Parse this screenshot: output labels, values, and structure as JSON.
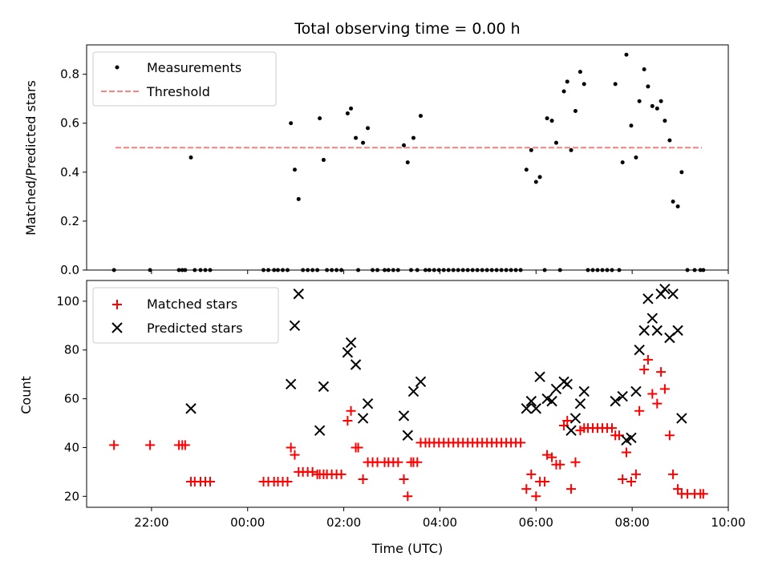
{
  "chart_data": [
    {
      "type": "scatter",
      "title": "Total observing time = 0.00 h",
      "xlabel": "",
      "ylabel": "Matched/Predicted stars",
      "xlim_hours": [
        -3.35,
        10.0
      ],
      "ylim": [
        0,
        0.92
      ],
      "yticks": [
        0.0,
        0.2,
        0.4,
        0.6,
        0.8
      ],
      "ytick_labels": [
        "0.0",
        "0.2",
        "0.4",
        "0.6",
        "0.8"
      ],
      "legend": {
        "placement": "top-left",
        "entries": [
          "Measurements",
          "Threshold"
        ]
      },
      "threshold": {
        "name": "Threshold",
        "value": 0.5,
        "x_range_hours": [
          -2.75,
          9.45
        ],
        "color": "#ff7f7f",
        "style": "dashed"
      },
      "series": [
        {
          "name": "Measurements",
          "color": "#000000",
          "marker": "dot",
          "points": [
            [
              -2.78,
              0.0
            ],
            [
              -2.03,
              0.0
            ],
            [
              -1.43,
              0.0
            ],
            [
              -1.36,
              0.0
            ],
            [
              -1.3,
              0.0
            ],
            [
              -1.18,
              0.46
            ],
            [
              -1.1,
              0.0
            ],
            [
              -0.98,
              0.0
            ],
            [
              -0.88,
              0.0
            ],
            [
              -0.78,
              0.0
            ],
            [
              0.33,
              0.0
            ],
            [
              0.43,
              0.0
            ],
            [
              0.55,
              0.0
            ],
            [
              0.63,
              0.0
            ],
            [
              0.73,
              0.0
            ],
            [
              0.83,
              0.0
            ],
            [
              0.9,
              0.6
            ],
            [
              0.98,
              0.41
            ],
            [
              1.06,
              0.29
            ],
            [
              1.15,
              0.0
            ],
            [
              1.25,
              0.0
            ],
            [
              1.35,
              0.0
            ],
            [
              1.45,
              0.0
            ],
            [
              1.5,
              0.62
            ],
            [
              1.58,
              0.45
            ],
            [
              1.65,
              0.0
            ],
            [
              1.75,
              0.0
            ],
            [
              1.85,
              0.0
            ],
            [
              1.95,
              0.0
            ],
            [
              2.08,
              0.64
            ],
            [
              2.15,
              0.66
            ],
            [
              2.25,
              0.54
            ],
            [
              2.3,
              0.0
            ],
            [
              2.4,
              0.52
            ],
            [
              2.5,
              0.58
            ],
            [
              2.6,
              0.0
            ],
            [
              2.7,
              0.0
            ],
            [
              2.85,
              0.0
            ],
            [
              2.93,
              0.0
            ],
            [
              3.03,
              0.0
            ],
            [
              3.13,
              0.0
            ],
            [
              3.25,
              0.51
            ],
            [
              3.33,
              0.44
            ],
            [
              3.4,
              0.0
            ],
            [
              3.45,
              0.54
            ],
            [
              3.53,
              0.0
            ],
            [
              3.6,
              0.63
            ],
            [
              3.7,
              0.0
            ],
            [
              3.78,
              0.0
            ],
            [
              3.88,
              0.0
            ],
            [
              3.98,
              0.0
            ],
            [
              4.08,
              0.0
            ],
            [
              4.18,
              0.0
            ],
            [
              4.28,
              0.0
            ],
            [
              4.38,
              0.0
            ],
            [
              4.48,
              0.0
            ],
            [
              4.58,
              0.0
            ],
            [
              4.68,
              0.0
            ],
            [
              4.78,
              0.0
            ],
            [
              4.88,
              0.0
            ],
            [
              4.98,
              0.0
            ],
            [
              5.08,
              0.0
            ],
            [
              5.18,
              0.0
            ],
            [
              5.28,
              0.0
            ],
            [
              5.38,
              0.0
            ],
            [
              5.48,
              0.0
            ],
            [
              5.58,
              0.0
            ],
            [
              5.68,
              0.0
            ],
            [
              5.8,
              0.41
            ],
            [
              5.9,
              0.49
            ],
            [
              6.0,
              0.36
            ],
            [
              6.08,
              0.38
            ],
            [
              6.18,
              0.0
            ],
            [
              6.23,
              0.62
            ],
            [
              6.33,
              0.61
            ],
            [
              6.42,
              0.52
            ],
            [
              6.5,
              0.0
            ],
            [
              6.58,
              0.73
            ],
            [
              6.65,
              0.77
            ],
            [
              6.73,
              0.49
            ],
            [
              6.82,
              0.65
            ],
            [
              6.92,
              0.81
            ],
            [
              7.0,
              0.76
            ],
            [
              7.08,
              0.0
            ],
            [
              7.18,
              0.0
            ],
            [
              7.28,
              0.0
            ],
            [
              7.38,
              0.0
            ],
            [
              7.48,
              0.0
            ],
            [
              7.58,
              0.0
            ],
            [
              7.65,
              0.76
            ],
            [
              7.73,
              0.0
            ],
            [
              7.8,
              0.44
            ],
            [
              7.88,
              0.88
            ],
            [
              7.98,
              0.59
            ],
            [
              8.08,
              0.46
            ],
            [
              8.15,
              0.69
            ],
            [
              8.25,
              0.82
            ],
            [
              8.33,
              0.75
            ],
            [
              8.42,
              0.67
            ],
            [
              8.52,
              0.66
            ],
            [
              8.6,
              0.69
            ],
            [
              8.68,
              0.61
            ],
            [
              8.78,
              0.53
            ],
            [
              8.85,
              0.28
            ],
            [
              8.95,
              0.26
            ],
            [
              9.03,
              0.4
            ],
            [
              9.15,
              0.0
            ],
            [
              9.3,
              0.0
            ],
            [
              9.42,
              0.0
            ],
            [
              9.48,
              0.0
            ]
          ]
        }
      ]
    },
    {
      "type": "scatter",
      "title": "",
      "xlabel": "Time (UTC)",
      "ylabel": "Count",
      "xlim_hours": [
        -3.35,
        10.0
      ],
      "ylim": [
        15.5,
        108.5
      ],
      "yticks": [
        20,
        40,
        60,
        80,
        100
      ],
      "ytick_labels": [
        "20",
        "40",
        "60",
        "80",
        "100"
      ],
      "xticks_hours": [
        -2,
        0,
        2,
        4,
        6,
        8,
        10
      ],
      "xtick_labels": [
        "22:00",
        "00:00",
        "02:00",
        "04:00",
        "06:00",
        "08:00",
        "10:00"
      ],
      "legend": {
        "placement": "top-left",
        "entries": [
          "Matched stars",
          "Predicted stars"
        ]
      },
      "series": [
        {
          "name": "Matched stars",
          "color": "#ff0000",
          "marker": "plus",
          "points": [
            [
              -2.78,
              41
            ],
            [
              -2.03,
              41
            ],
            [
              -1.43,
              41
            ],
            [
              -1.36,
              41
            ],
            [
              -1.3,
              41
            ],
            [
              -1.18,
              26
            ],
            [
              -1.1,
              26
            ],
            [
              -0.98,
              26
            ],
            [
              -0.88,
              26
            ],
            [
              -0.78,
              26
            ],
            [
              0.33,
              26
            ],
            [
              0.43,
              26
            ],
            [
              0.55,
              26
            ],
            [
              0.63,
              26
            ],
            [
              0.73,
              26
            ],
            [
              0.83,
              26
            ],
            [
              0.9,
              40
            ],
            [
              0.98,
              37
            ],
            [
              1.06,
              30
            ],
            [
              1.15,
              30
            ],
            [
              1.25,
              30
            ],
            [
              1.35,
              30
            ],
            [
              1.45,
              29
            ],
            [
              1.5,
              29
            ],
            [
              1.58,
              29
            ],
            [
              1.65,
              29
            ],
            [
              1.75,
              29
            ],
            [
              1.85,
              29
            ],
            [
              1.95,
              29
            ],
            [
              2.08,
              51
            ],
            [
              2.15,
              55
            ],
            [
              2.25,
              40
            ],
            [
              2.3,
              40
            ],
            [
              2.4,
              27
            ],
            [
              2.5,
              34
            ],
            [
              2.6,
              34
            ],
            [
              2.7,
              34
            ],
            [
              2.85,
              34
            ],
            [
              2.93,
              34
            ],
            [
              3.03,
              34
            ],
            [
              3.13,
              34
            ],
            [
              3.25,
              27
            ],
            [
              3.33,
              20
            ],
            [
              3.4,
              34
            ],
            [
              3.45,
              34
            ],
            [
              3.53,
              34
            ],
            [
              3.6,
              42
            ],
            [
              3.7,
              42
            ],
            [
              3.78,
              42
            ],
            [
              3.88,
              42
            ],
            [
              3.98,
              42
            ],
            [
              4.08,
              42
            ],
            [
              4.18,
              42
            ],
            [
              4.28,
              42
            ],
            [
              4.38,
              42
            ],
            [
              4.48,
              42
            ],
            [
              4.58,
              42
            ],
            [
              4.68,
              42
            ],
            [
              4.78,
              42
            ],
            [
              4.88,
              42
            ],
            [
              4.98,
              42
            ],
            [
              5.08,
              42
            ],
            [
              5.18,
              42
            ],
            [
              5.28,
              42
            ],
            [
              5.38,
              42
            ],
            [
              5.48,
              42
            ],
            [
              5.58,
              42
            ],
            [
              5.68,
              42
            ],
            [
              5.8,
              23
            ],
            [
              5.9,
              29
            ],
            [
              6.0,
              20
            ],
            [
              6.08,
              26
            ],
            [
              6.18,
              26
            ],
            [
              6.23,
              37
            ],
            [
              6.33,
              36
            ],
            [
              6.42,
              33
            ],
            [
              6.5,
              33
            ],
            [
              6.58,
              49
            ],
            [
              6.65,
              51
            ],
            [
              6.73,
              23
            ],
            [
              6.82,
              34
            ],
            [
              6.92,
              47
            ],
            [
              7.0,
              48
            ],
            [
              7.08,
              48
            ],
            [
              7.18,
              48
            ],
            [
              7.28,
              48
            ],
            [
              7.38,
              48
            ],
            [
              7.48,
              48
            ],
            [
              7.58,
              48
            ],
            [
              7.65,
              45
            ],
            [
              7.73,
              45
            ],
            [
              7.8,
              27
            ],
            [
              7.88,
              38
            ],
            [
              7.98,
              26
            ],
            [
              8.08,
              29
            ],
            [
              8.15,
              55
            ],
            [
              8.25,
              72
            ],
            [
              8.33,
              76
            ],
            [
              8.42,
              62
            ],
            [
              8.52,
              58
            ],
            [
              8.6,
              71
            ],
            [
              8.68,
              64
            ],
            [
              8.78,
              45
            ],
            [
              8.85,
              29
            ],
            [
              8.95,
              23
            ],
            [
              9.03,
              21
            ],
            [
              9.15,
              21
            ],
            [
              9.3,
              21
            ],
            [
              9.42,
              21
            ],
            [
              9.48,
              21
            ]
          ]
        },
        {
          "name": "Predicted stars",
          "color": "#000000",
          "marker": "x",
          "points": [
            [
              -1.18,
              56
            ],
            [
              0.9,
              66
            ],
            [
              0.98,
              90
            ],
            [
              1.06,
              103
            ],
            [
              1.5,
              47
            ],
            [
              1.58,
              65
            ],
            [
              2.08,
              79
            ],
            [
              2.15,
              83
            ],
            [
              2.25,
              74
            ],
            [
              2.4,
              52
            ],
            [
              2.5,
              58
            ],
            [
              3.25,
              53
            ],
            [
              3.33,
              45
            ],
            [
              3.45,
              63
            ],
            [
              3.6,
              67
            ],
            [
              5.8,
              56
            ],
            [
              5.9,
              59
            ],
            [
              6.0,
              56
            ],
            [
              6.08,
              69
            ],
            [
              6.23,
              60
            ],
            [
              6.33,
              59
            ],
            [
              6.42,
              64
            ],
            [
              6.58,
              67
            ],
            [
              6.65,
              66
            ],
            [
              6.73,
              47
            ],
            [
              6.82,
              52
            ],
            [
              6.92,
              58
            ],
            [
              7.0,
              63
            ],
            [
              7.65,
              59
            ],
            [
              7.8,
              61
            ],
            [
              7.88,
              43
            ],
            [
              7.98,
              44
            ],
            [
              8.08,
              63
            ],
            [
              8.15,
              80
            ],
            [
              8.25,
              88
            ],
            [
              8.33,
              101
            ],
            [
              8.42,
              93
            ],
            [
              8.52,
              88
            ],
            [
              8.6,
              103
            ],
            [
              8.68,
              105
            ],
            [
              8.78,
              85
            ],
            [
              8.85,
              103
            ],
            [
              8.95,
              88
            ],
            [
              9.03,
              52
            ]
          ]
        }
      ]
    }
  ]
}
